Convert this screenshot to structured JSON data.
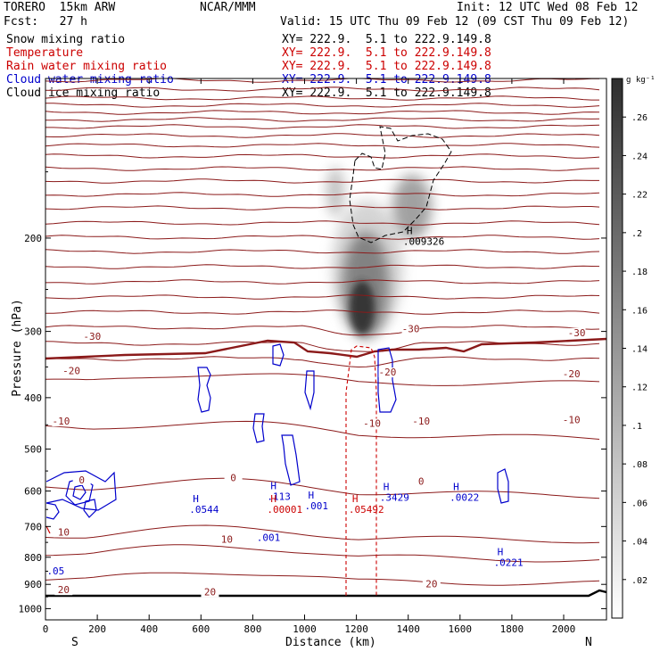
{
  "header": {
    "model": "TORERO  15km ARW",
    "center": "NCAR/MMM",
    "init": "Init: 12 UTC Wed 08 Feb 12",
    "fcst": "Fcst:   27 h",
    "valid": "Valid: 15 UTC Thu 09 Feb 12 (09 CST Thu 09 Feb 12)"
  },
  "fields": [
    {
      "name": "Snow mixing ratio",
      "xy": "XY= 222.9.  5.1 to 222.9.149.8",
      "color": "#000000"
    },
    {
      "name": "Temperature",
      "xy": "XY= 222.9.  5.1 to 222.9.149.8",
      "color": "#cc0000"
    },
    {
      "name": "Rain water mixing ratio",
      "xy": "XY= 222.9.  5.1 to 222.9.149.8",
      "color": "#cc0000"
    },
    {
      "name": "Cloud water mixing ratio",
      "xy": "XY= 222.9.  5.1 to 222.9.149.8",
      "color": "#0000cc"
    },
    {
      "name": "Cloud ice mixing ratio",
      "xy": "XY= 222.9.  5.1 to 222.9.149.8",
      "color": "#000000"
    }
  ],
  "colorbar": {
    "unit": "g kg⁻¹",
    "ticks": [
      ".02",
      ".04",
      ".06",
      ".08",
      ".1",
      ".12",
      ".14",
      ".16",
      ".18",
      ".2",
      ".22",
      ".24",
      ".26"
    ]
  },
  "chart_data": {
    "type": "contour",
    "xlabel": "Distance (km)",
    "ylabel": "Pressure (hPa)",
    "x_ticks": [
      "0",
      "200",
      "400",
      "600",
      "800",
      "1000",
      "1200",
      "1400",
      "1600",
      "1800",
      "2000"
    ],
    "y_ticks": [
      "200",
      "300",
      "400",
      "500",
      "600",
      "700",
      "800",
      "900",
      "1000"
    ],
    "xlim": [
      0,
      2170
    ],
    "ylim": [
      1050,
      100
    ],
    "y_scale": "log",
    "endpoints": {
      "left": "S",
      "right": "N"
    },
    "temperature_labels": [
      {
        "text": "-30",
        "x": 180,
        "p": 310
      },
      {
        "text": "-30",
        "x": 1410,
        "p": 300
      },
      {
        "text": "-30",
        "x": 2050,
        "p": 305
      },
      {
        "text": "-20",
        "x": 100,
        "p": 360
      },
      {
        "text": "-20",
        "x": 1320,
        "p": 362
      },
      {
        "text": "-20",
        "x": 2030,
        "p": 365
      },
      {
        "text": "-10",
        "x": 60,
        "p": 448
      },
      {
        "text": "-10",
        "x": 1260,
        "p": 452
      },
      {
        "text": "-10",
        "x": 1450,
        "p": 448
      },
      {
        "text": "-10",
        "x": 2030,
        "p": 445
      },
      {
        "text": "0",
        "x": 140,
        "p": 578
      },
      {
        "text": "0",
        "x": 725,
        "p": 573
      },
      {
        "text": "0",
        "x": 1450,
        "p": 582
      },
      {
        "text": "10",
        "x": 70,
        "p": 725
      },
      {
        "text": "10",
        "x": 700,
        "p": 748
      },
      {
        "text": "20",
        "x": 1490,
        "p": 908
      },
      {
        "text": "20",
        "x": 635,
        "p": 940
      },
      {
        "text": "20",
        "x": 70,
        "p": 932
      }
    ],
    "extrema": [
      {
        "label": "H",
        "value": ".009326",
        "x": 1380,
        "p": 206,
        "field": "cloud ice"
      },
      {
        "label": "H",
        "value": ".113",
        "x": 855,
        "p": 624,
        "field": "cloud water"
      },
      {
        "label": "H",
        "value": ".0544",
        "x": 555,
        "p": 660,
        "field": "cloud water"
      },
      {
        "label": "H",
        "value": ".00001",
        "x": 855,
        "p": 660,
        "field": "rain water"
      },
      {
        "label": "H",
        "value": ".001",
        "x": 1000,
        "p": 650,
        "field": "cloud water"
      },
      {
        "label": "H",
        "value": ".05492",
        "x": 1170,
        "p": 660,
        "field": "rain water"
      },
      {
        "label": "H",
        "value": ".3429",
        "x": 1290,
        "p": 626,
        "field": "cloud water"
      },
      {
        "label": "H",
        "value": ".0022",
        "x": 1560,
        "p": 626,
        "field": "cloud water"
      },
      {
        "label": "",
        "value": ".001",
        "x": 815,
        "p": 745,
        "field": "cloud water"
      },
      {
        "label": "H",
        "value": ".0221",
        "x": 1730,
        "p": 830,
        "field": "cloud water"
      },
      {
        "label": "",
        "value": ".05",
        "x": 5,
        "p": 862,
        "field": "cloud water"
      }
    ],
    "snow_max": 0.26
  }
}
